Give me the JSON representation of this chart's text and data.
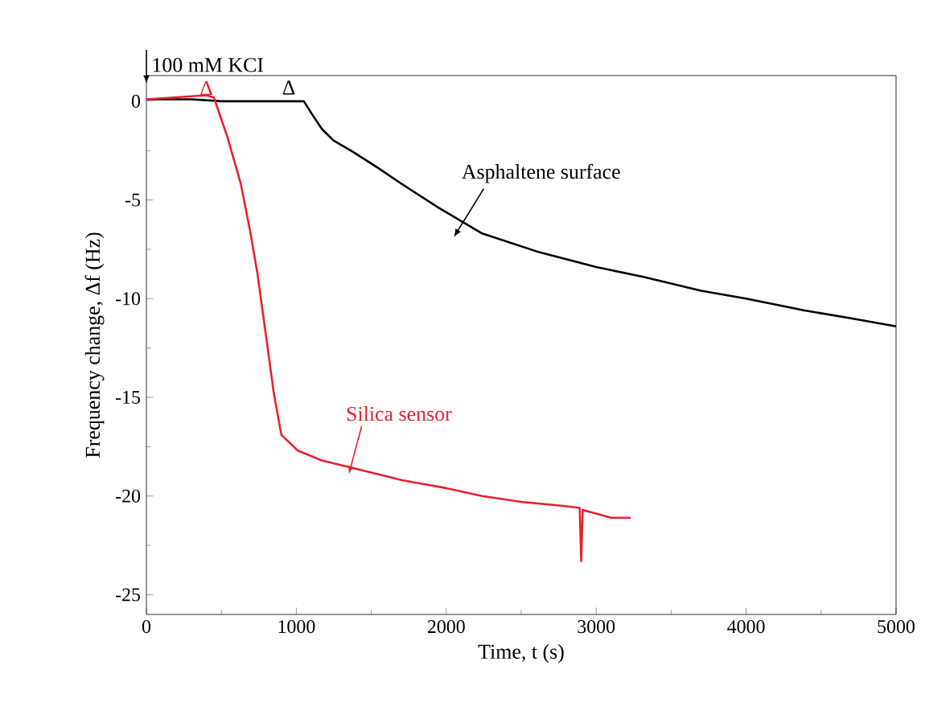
{
  "chart_data": {
    "type": "line",
    "xlabel": "Time, t (s)",
    "ylabel": "Frequency change, Δf (Hz)",
    "xlim": [
      0,
      5000
    ],
    "ylim": [
      -26,
      1.3
    ],
    "xticks": [
      0,
      1000,
      2000,
      3000,
      4000,
      5000
    ],
    "yticks": [
      -25,
      -20,
      -15,
      -10,
      -5,
      0
    ],
    "annotations": [
      "100 mM KCI",
      {
        "text": "Δ",
        "x": 400,
        "y": 0.3
      },
      "Δ",
      "Asphaltene surface",
      {
        "text": "Silica sensor",
        "x": 1350,
        "y": -18.9
      }
    ],
    "series": [
      {
        "color": "#000000",
        "x": [
          0,
          300,
          500,
          700,
          900,
          1050,
          1100,
          1170,
          1250,
          1385,
          1550,
          1705,
          1950,
          2240,
          2600,
          3000,
          3315,
          3700,
          4000,
          4390,
          4700,
          5000
        ],
        "values": [
          0.1,
          0.1,
          0,
          0,
          0,
          0,
          -0.6,
          -1.4,
          -2.0,
          -2.6,
          -3.4,
          -4.2,
          -5.4,
          -6.7,
          -7.6,
          -8.4,
          -8.9,
          -9.6,
          -10.0,
          -10.6,
          -11.0,
          -11.4
        ]
      },
      {
        "color": "#e8202e",
        "x": [
          0,
          200,
          400,
          450,
          540,
          630,
          690,
          740,
          800,
          850,
          900,
          1010,
          1170,
          1385,
          1705,
          2000,
          2240,
          2500,
          2780,
          2890,
          2900,
          2910,
          3100,
          3230
        ],
        "values": [
          0.1,
          0.2,
          0.3,
          0.2,
          -1.8,
          -4.2,
          -6.5,
          -8.7,
          -12.0,
          -14.8,
          -16.9,
          -17.7,
          -18.2,
          -18.6,
          -19.2,
          -19.6,
          -20.0,
          -20.3,
          -20.5,
          -20.6,
          -23.3,
          -20.7,
          -21.1,
          -21.1
        ]
      }
    ]
  }
}
